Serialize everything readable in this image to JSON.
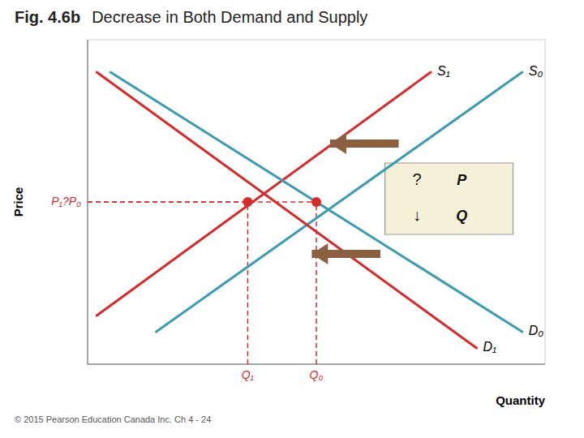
{
  "chart_data": {
    "type": "line",
    "title": "Fig. 4.6b",
    "subtitle": "Decrease in Both Demand and Supply",
    "xlabel": "Quantity",
    "ylabel": "Price",
    "xlim": [
      0,
      10
    ],
    "ylim": [
      0,
      10
    ],
    "xticks": [
      0,
      1,
      2,
      3,
      4,
      5,
      6,
      7,
      8,
      9,
      10
    ],
    "yticks": [
      0,
      1,
      2,
      3,
      4,
      5,
      6,
      7,
      8,
      9,
      10
    ],
    "tick_labels": false,
    "grid": true,
    "series": [
      {
        "name": "S₀",
        "color": "#3a9bb5",
        "x": [
          1.5,
          9.5
        ],
        "values": [
          1.0,
          9.0
        ]
      },
      {
        "name": "S₁",
        "color": "#d62b2b",
        "x": [
          0.2,
          7.5
        ],
        "values": [
          1.5,
          9.0
        ]
      },
      {
        "name": "D₀",
        "color": "#3a9bb5",
        "x": [
          0.5,
          9.5
        ],
        "values": [
          9.0,
          1.0
        ]
      },
      {
        "name": "D₁",
        "color": "#d62b2b",
        "x": [
          0.2,
          8.5
        ],
        "values": [
          9.0,
          0.5
        ]
      }
    ],
    "points": {
      "color": "#d62b2b",
      "x": [
        5.0,
        3.5
      ],
      "values": [
        5.0,
        5.0
      ],
      "labels": [
        "Q₀",
        "Q₁"
      ]
    },
    "price_label": {
      "text": "P₁?P₀",
      "value": 5.0
    },
    "arrows": [
      {
        "x": [
          6.8,
          5.3
        ],
        "values": [
          6.8,
          6.8
        ],
        "color": "#8b6040"
      },
      {
        "x": [
          6.4,
          4.9
        ],
        "values": [
          3.4,
          3.4
        ],
        "color": "#8b6040"
      }
    ],
    "box": {
      "x": [
        6.5,
        9.3
      ],
      "values": [
        4.0,
        6.2
      ],
      "color": "#f5f0d8",
      "rows": [
        {
          "symbol": "?",
          "text": "P"
        },
        {
          "symbol": "↓",
          "text": "Q"
        }
      ]
    },
    "caption": "© 2015 Pearson Education Canada Inc.  Ch 4 - 24"
  }
}
